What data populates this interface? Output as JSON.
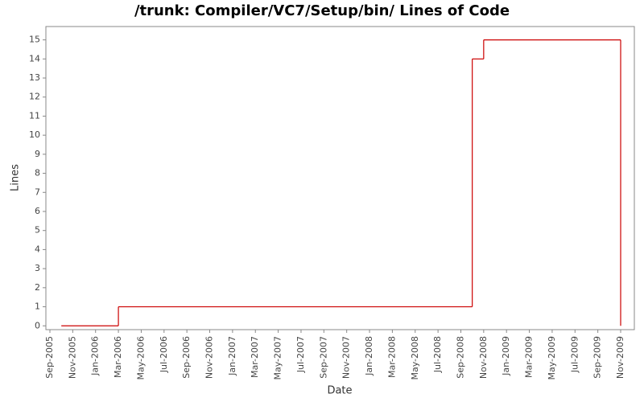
{
  "chart_data": {
    "type": "step",
    "title": "/trunk: Compiler/VC7/Setup/bin/ Lines of Code",
    "x_label": "Date",
    "y_label": "Lines",
    "x": [
      "2005-10",
      "2006-03",
      "2008-10",
      "2008-11",
      "2009-11"
    ],
    "series": [
      {
        "name": "Lines",
        "color": "#cc0000",
        "values": [
          0,
          1,
          14,
          15,
          0
        ]
      }
    ],
    "xlim": [
      "2005-09",
      "2009-11"
    ],
    "xticks": [
      {
        "value": "2005-09",
        "label": "Sep-2005"
      },
      {
        "value": "2005-11",
        "label": "Nov-2005"
      },
      {
        "value": "2006-01",
        "label": "Jan-2006"
      },
      {
        "value": "2006-03",
        "label": "Mar-2006"
      },
      {
        "value": "2006-05",
        "label": "May-2006"
      },
      {
        "value": "2006-07",
        "label": "Jul-2006"
      },
      {
        "value": "2006-09",
        "label": "Sep-2006"
      },
      {
        "value": "2006-11",
        "label": "Nov-2006"
      },
      {
        "value": "2007-01",
        "label": "Jan-2007"
      },
      {
        "value": "2007-03",
        "label": "Mar-2007"
      },
      {
        "value": "2007-05",
        "label": "May-2007"
      },
      {
        "value": "2007-07",
        "label": "Jul-2007"
      },
      {
        "value": "2007-09",
        "label": "Sep-2007"
      },
      {
        "value": "2007-11",
        "label": "Nov-2007"
      },
      {
        "value": "2008-01",
        "label": "Jan-2008"
      },
      {
        "value": "2008-03",
        "label": "Mar-2008"
      },
      {
        "value": "2008-05",
        "label": "May-2008"
      },
      {
        "value": "2008-07",
        "label": "Jul-2008"
      },
      {
        "value": "2008-09",
        "label": "Sep-2008"
      },
      {
        "value": "2008-11",
        "label": "Nov-2008"
      },
      {
        "value": "2009-01",
        "label": "Jan-2009"
      },
      {
        "value": "2009-03",
        "label": "Mar-2009"
      },
      {
        "value": "2009-05",
        "label": "May-2009"
      },
      {
        "value": "2009-07",
        "label": "Jul-2009"
      },
      {
        "value": "2009-09",
        "label": "Sep-2009"
      },
      {
        "value": "2009-11",
        "label": "Nov-2009"
      }
    ],
    "ylim": [
      -0.2,
      15.7
    ],
    "yticks": [
      0,
      1,
      2,
      3,
      4,
      5,
      6,
      7,
      8,
      9,
      10,
      11,
      12,
      13,
      14,
      15
    ],
    "grid": false
  }
}
